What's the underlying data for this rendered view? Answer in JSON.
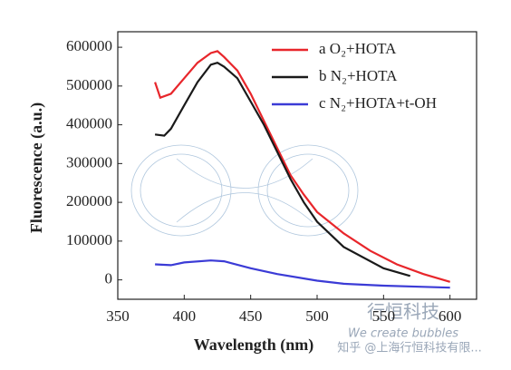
{
  "chart_data": {
    "type": "line",
    "x_label": "Wavelength (nm)",
    "y_label": "Fluorescence (a.u.)",
    "xlim": [
      350,
      620
    ],
    "ylim": [
      -50000,
      640000
    ],
    "xticks": [
      350,
      400,
      450,
      500,
      550,
      600
    ],
    "yticks": [
      0,
      100000,
      200000,
      300000,
      400000,
      500000,
      600000
    ],
    "grid": false,
    "legend": "upper right",
    "series": [
      {
        "name": "a  O₂+HOTA",
        "color": "#e8262b",
        "x": [
          378,
          382,
          390,
          400,
          410,
          420,
          425,
          430,
          440,
          450,
          460,
          470,
          480,
          490,
          500,
          520,
          540,
          560,
          580,
          600
        ],
        "values": [
          510000,
          470000,
          480000,
          520000,
          560000,
          585000,
          590000,
          575000,
          540000,
          480000,
          410000,
          340000,
          270000,
          220000,
          175000,
          120000,
          75000,
          40000,
          15000,
          -5000
        ]
      },
      {
        "name": "b  N₂+HOTA",
        "color": "#1a1a1a",
        "x": [
          378,
          385,
          390,
          400,
          410,
          420,
          425,
          430,
          440,
          450,
          460,
          470,
          480,
          490,
          500,
          520,
          550,
          570
        ],
        "values": [
          375000,
          372000,
          390000,
          450000,
          510000,
          555000,
          560000,
          550000,
          520000,
          460000,
          400000,
          330000,
          260000,
          200000,
          150000,
          85000,
          30000,
          10000
        ]
      },
      {
        "name": "c  N₂+HOTA+t-OH",
        "color": "#3b3bd6",
        "x": [
          378,
          390,
          400,
          420,
          430,
          450,
          470,
          500,
          520,
          550,
          580,
          600
        ],
        "values": [
          40000,
          38000,
          45000,
          50000,
          48000,
          30000,
          15000,
          -2000,
          -10000,
          -15000,
          -18000,
          -20000
        ]
      }
    ],
    "watermark": [
      "行恒科技",
      "We create bubbles",
      "知乎 @上海行恒科技有限..."
    ]
  }
}
